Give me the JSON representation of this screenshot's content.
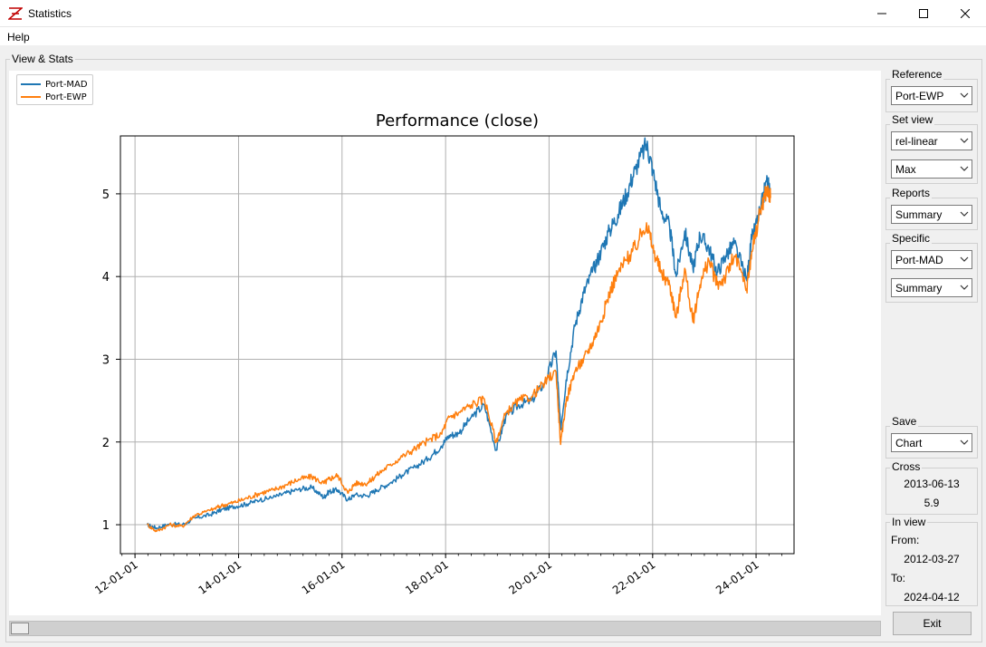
{
  "window": {
    "title": "Statistics",
    "menu": [
      "Help"
    ]
  },
  "main_group": {
    "label": "View & Stats"
  },
  "sidebar": {
    "reference": {
      "label": "Reference",
      "value": "Port-EWP"
    },
    "set_view": {
      "label": "Set view",
      "mode": "rel-linear",
      "range": "Max"
    },
    "reports": {
      "label": "Reports",
      "value": "Summary"
    },
    "specific": {
      "label": "Specific",
      "portfolio": "Port-MAD",
      "report": "Summary"
    },
    "save": {
      "label": "Save",
      "value": "Chart"
    },
    "cross": {
      "label": "Cross",
      "date": "2013-06-13",
      "value": "5.9"
    },
    "in_view": {
      "label": "In view",
      "from_label": "From:",
      "from": "2012-03-27",
      "to_label": "To:",
      "to": "2024-04-12"
    }
  },
  "buttons": {
    "exit": "Exit"
  },
  "colors": {
    "port_mad": "#1f77b4",
    "port_ewp": "#ff7f0e",
    "grid": "#b0b0b0"
  },
  "chart_data": {
    "type": "line",
    "title": "Performance (close)",
    "xlabel": "",
    "ylabel": "",
    "x_ticks": [
      "12-01-01",
      "14-01-01",
      "16-01-01",
      "18-01-01",
      "20-01-01",
      "22-01-01",
      "24-01-01"
    ],
    "y_ticks": [
      1,
      2,
      3,
      4,
      5
    ],
    "xlim": [
      "2011-09-20",
      "2024-09-25"
    ],
    "ylim": [
      0.65,
      5.7
    ],
    "grid": true,
    "legend_position": "top-left",
    "series": [
      {
        "name": "Port-MAD",
        "x": [
          "2012-03-27",
          "2012-06-01",
          "2012-09-01",
          "2012-12-01",
          "2013-03-01",
          "2013-06-13",
          "2013-09-01",
          "2013-12-01",
          "2014-03-01",
          "2014-06-01",
          "2014-09-01",
          "2014-12-01",
          "2015-03-01",
          "2015-06-01",
          "2015-08-25",
          "2015-10-01",
          "2015-12-01",
          "2016-02-11",
          "2016-04-01",
          "2016-06-27",
          "2016-09-01",
          "2016-12-01",
          "2017-03-01",
          "2017-06-01",
          "2017-09-01",
          "2017-12-01",
          "2018-01-26",
          "2018-04-01",
          "2018-07-01",
          "2018-10-01",
          "2018-12-24",
          "2019-03-01",
          "2019-06-01",
          "2019-09-01",
          "2019-12-01",
          "2020-02-19",
          "2020-03-23",
          "2020-05-01",
          "2020-07-01",
          "2020-09-01",
          "2020-11-01",
          "2021-01-01",
          "2021-03-01",
          "2021-05-01",
          "2021-07-01",
          "2021-09-01",
          "2021-11-19",
          "2022-01-01",
          "2022-03-01",
          "2022-05-01",
          "2022-06-16",
          "2022-08-15",
          "2022-10-12",
          "2022-12-01",
          "2023-02-01",
          "2023-04-01",
          "2023-06-01",
          "2023-08-01",
          "2023-10-27",
          "2023-12-01",
          "2024-02-01",
          "2024-03-15",
          "2024-04-12"
        ],
        "y": [
          1.0,
          0.96,
          1.01,
          1.0,
          1.08,
          1.12,
          1.18,
          1.22,
          1.25,
          1.3,
          1.33,
          1.38,
          1.43,
          1.45,
          1.33,
          1.4,
          1.42,
          1.3,
          1.36,
          1.35,
          1.42,
          1.5,
          1.6,
          1.7,
          1.8,
          1.95,
          2.08,
          2.1,
          2.3,
          2.45,
          1.9,
          2.3,
          2.45,
          2.5,
          2.72,
          3.1,
          2.15,
          2.75,
          3.4,
          3.8,
          4.05,
          4.3,
          4.55,
          4.75,
          5.0,
          5.3,
          5.6,
          5.3,
          4.8,
          4.6,
          4.0,
          4.55,
          4.1,
          4.5,
          4.35,
          4.05,
          4.25,
          4.4,
          3.95,
          4.45,
          4.8,
          5.15,
          5.05
        ]
      },
      {
        "name": "Port-EWP",
        "x": [
          "2012-03-27",
          "2012-06-01",
          "2012-09-01",
          "2012-12-01",
          "2013-03-01",
          "2013-06-13",
          "2013-09-01",
          "2013-12-01",
          "2014-03-01",
          "2014-06-01",
          "2014-09-01",
          "2014-12-01",
          "2015-03-01",
          "2015-06-01",
          "2015-08-25",
          "2015-10-01",
          "2015-12-01",
          "2016-02-11",
          "2016-04-01",
          "2016-06-27",
          "2016-09-01",
          "2016-12-01",
          "2017-03-01",
          "2017-06-01",
          "2017-09-01",
          "2017-12-01",
          "2018-01-26",
          "2018-04-01",
          "2018-07-01",
          "2018-10-01",
          "2018-12-24",
          "2019-03-01",
          "2019-06-01",
          "2019-09-01",
          "2019-12-01",
          "2020-02-19",
          "2020-03-23",
          "2020-05-01",
          "2020-07-01",
          "2020-09-01",
          "2020-11-01",
          "2021-01-01",
          "2021-03-01",
          "2021-05-01",
          "2021-07-01",
          "2021-09-01",
          "2021-11-19",
          "2022-01-01",
          "2022-03-01",
          "2022-05-01",
          "2022-06-16",
          "2022-08-15",
          "2022-10-12",
          "2022-12-01",
          "2023-02-01",
          "2023-04-01",
          "2023-06-01",
          "2023-08-01",
          "2023-10-27",
          "2023-12-01",
          "2024-02-01",
          "2024-03-15",
          "2024-04-12"
        ],
        "y": [
          1.0,
          0.92,
          1.0,
          0.98,
          1.12,
          1.17,
          1.23,
          1.27,
          1.32,
          1.38,
          1.42,
          1.48,
          1.55,
          1.58,
          1.5,
          1.55,
          1.6,
          1.38,
          1.5,
          1.5,
          1.6,
          1.72,
          1.82,
          1.92,
          2.02,
          2.1,
          2.3,
          2.35,
          2.45,
          2.52,
          2.0,
          2.35,
          2.5,
          2.55,
          2.72,
          2.85,
          1.97,
          2.5,
          2.85,
          3.0,
          3.2,
          3.45,
          3.8,
          4.05,
          4.2,
          4.35,
          4.65,
          4.35,
          4.05,
          3.9,
          3.5,
          4.1,
          3.45,
          3.9,
          4.2,
          3.9,
          4.0,
          4.25,
          3.85,
          4.3,
          4.8,
          5.05,
          4.95
        ]
      }
    ]
  }
}
